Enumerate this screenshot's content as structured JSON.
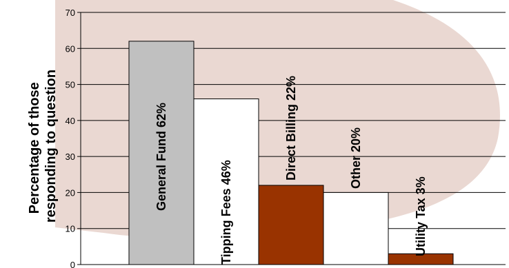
{
  "colors": {
    "background_blob": "#ead8d2",
    "gray_bar": "#c0c0c0",
    "white_bar": "#ffffff",
    "brown_bar": "#993300",
    "gridline": "#000000"
  },
  "chart_data": {
    "type": "bar",
    "title": "",
    "xlabel": "",
    "ylabel": "Percentage of those responding to question",
    "ylabel_lines": [
      "Percentage of those",
      "responding to question"
    ],
    "ylim": [
      0,
      70
    ],
    "yticks": [
      "0",
      "10",
      "20",
      "30",
      "40",
      "50",
      "60",
      "70"
    ],
    "grid": true,
    "categories": [
      "General Fund",
      "Tipping Fees",
      "Direct Billing",
      "Other",
      "Utility Tax"
    ],
    "values": [
      62,
      46,
      22,
      20,
      3
    ],
    "bar_labels": [
      "General Fund 62%",
      "Tipping Fees 46%",
      "Direct  Billing 22%",
      "Other 20%",
      "Utility Tax 3%"
    ],
    "bar_colors": [
      "#c0c0c0",
      "#ffffff",
      "#993300",
      "#ffffff",
      "#993300"
    ]
  }
}
